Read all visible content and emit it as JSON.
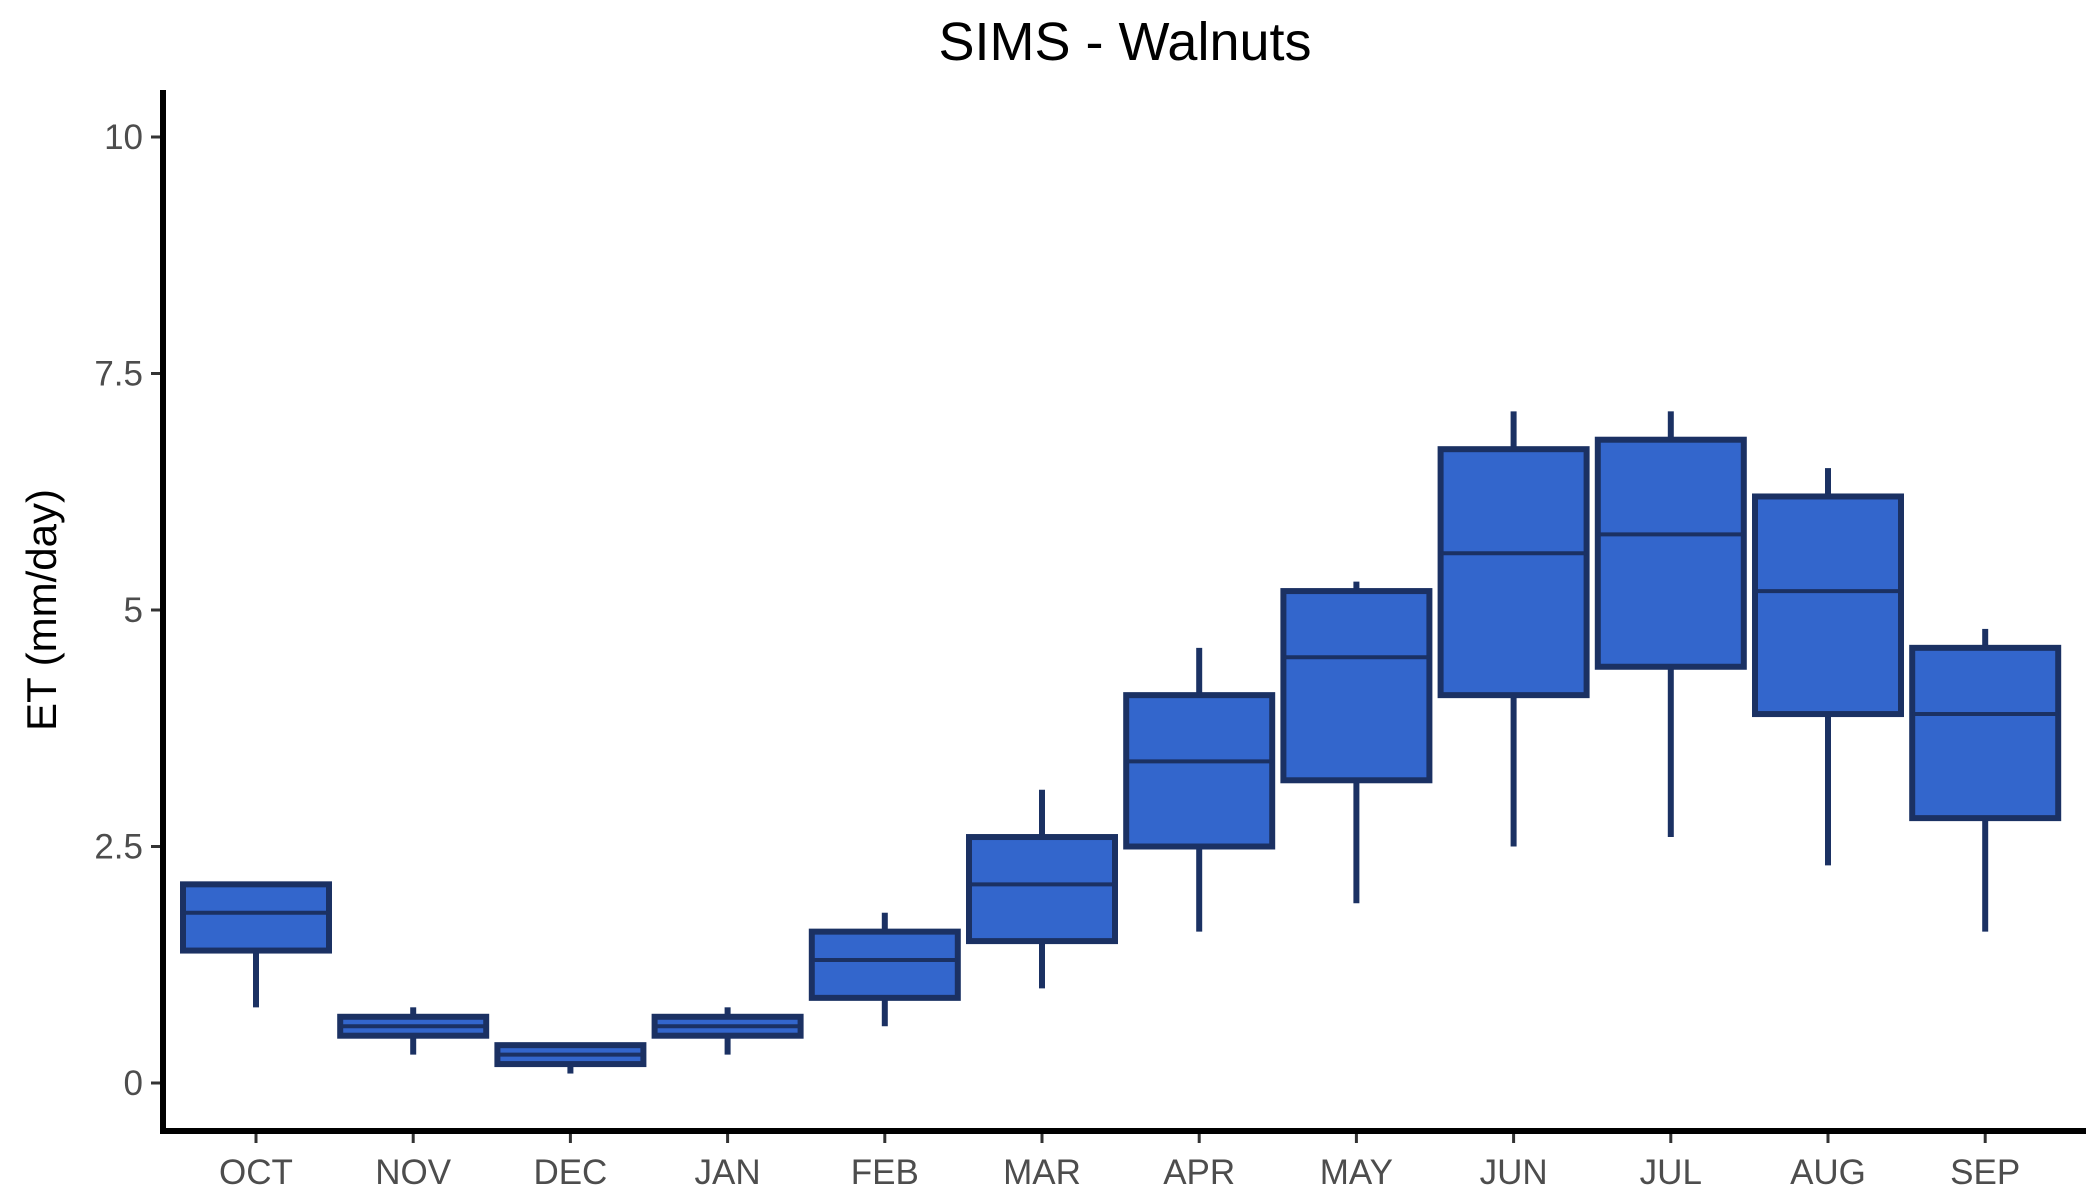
{
  "chart_data": {
    "type": "box",
    "title": "SIMS - Walnuts",
    "xlabel": "",
    "ylabel": "ET (mm/day)",
    "ylim": [
      -0.5,
      10.5
    ],
    "yticks": [
      0,
      2.5,
      5,
      7.5,
      10
    ],
    "ytick_labels": [
      "0",
      "2.5",
      "5",
      "7.5",
      "10"
    ],
    "grid": false,
    "legend": "none",
    "colors": {
      "box_fill": "#3366cc",
      "box_stroke": "#1b3163",
      "axis": "#000000"
    },
    "categories": [
      "OCT",
      "NOV",
      "DEC",
      "JAN",
      "FEB",
      "MAR",
      "APR",
      "MAY",
      "JUN",
      "JUL",
      "AUG",
      "SEP"
    ],
    "boxes": [
      {
        "min": 0.8,
        "q1": 1.4,
        "median": 1.8,
        "q3": 2.1,
        "max": 2.1
      },
      {
        "min": 0.3,
        "q1": 0.5,
        "median": 0.6,
        "q3": 0.7,
        "max": 0.8
      },
      {
        "min": 0.1,
        "q1": 0.2,
        "median": 0.3,
        "q3": 0.4,
        "max": 0.4
      },
      {
        "min": 0.3,
        "q1": 0.5,
        "median": 0.6,
        "q3": 0.7,
        "max": 0.8
      },
      {
        "min": 0.6,
        "q1": 0.9,
        "median": 1.3,
        "q3": 1.6,
        "max": 1.8
      },
      {
        "min": 1.0,
        "q1": 1.5,
        "median": 2.1,
        "q3": 2.6,
        "max": 3.1
      },
      {
        "min": 1.6,
        "q1": 2.5,
        "median": 3.4,
        "q3": 4.1,
        "max": 4.6
      },
      {
        "min": 1.9,
        "q1": 3.2,
        "median": 4.5,
        "q3": 5.2,
        "max": 5.3
      },
      {
        "min": 2.5,
        "q1": 4.1,
        "median": 5.6,
        "q3": 6.7,
        "max": 7.1
      },
      {
        "min": 2.6,
        "q1": 4.4,
        "median": 5.8,
        "q3": 6.8,
        "max": 7.1
      },
      {
        "min": 2.3,
        "q1": 3.9,
        "median": 5.2,
        "q3": 6.2,
        "max": 6.5
      },
      {
        "min": 1.6,
        "q1": 2.8,
        "median": 3.9,
        "q3": 4.6,
        "max": 4.8
      }
    ]
  }
}
